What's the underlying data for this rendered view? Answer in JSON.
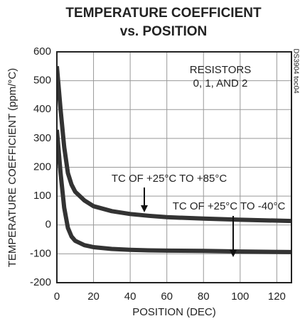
{
  "chart_data": {
    "type": "line",
    "title": "TEMPERATURE COEFFICIENT",
    "subtitle": "vs. POSITION",
    "x_label": "POSITION (DEC)",
    "y_label": "TEMPERATURE COEFFICIENT (ppm/°C)",
    "annotations": [
      "RESISTORS",
      "0, 1, AND 2",
      "TC OF +25°C TO +85°C",
      "TC OF +25°C TO -40°C"
    ],
    "side_note": "DS3904 toc04",
    "x": [
      0,
      2,
      4,
      6,
      8,
      10,
      15,
      20,
      30,
      40,
      50,
      60,
      80,
      100,
      128
    ],
    "series": [
      {
        "color": "#333333",
        "values": [
          550,
          400,
          270,
          180,
          140,
          115,
          85,
          65,
          48,
          38,
          32,
          27,
          22,
          18,
          14
        ]
      },
      {
        "color": "#333333",
        "values": [
          330,
          180,
          60,
          -10,
          -40,
          -55,
          -70,
          -77,
          -83,
          -86,
          -88,
          -89,
          -90,
          -92,
          -94
        ]
      }
    ],
    "xlim": [
      0,
      128
    ],
    "xticks": [
      0,
      20,
      40,
      60,
      80,
      100,
      120
    ],
    "ylim": [
      -200,
      600
    ],
    "yticks": [
      -200,
      -100,
      0,
      100,
      200,
      300,
      400,
      500,
      600
    ],
    "grid": true
  }
}
